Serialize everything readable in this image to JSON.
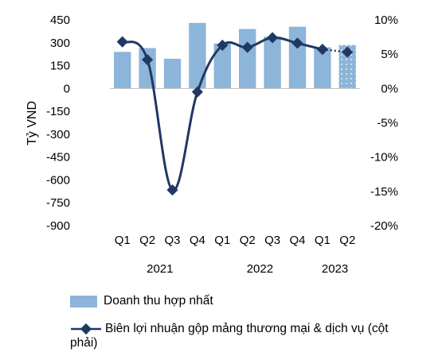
{
  "chart_data": {
    "type": "bar+line",
    "ylabel": "Tỷ VND",
    "categories": [
      "Q1",
      "Q2",
      "Q3",
      "Q4",
      "Q1",
      "Q2",
      "Q3",
      "Q4",
      "Q1",
      "Q2"
    ],
    "years": [
      {
        "label": "2021",
        "start": 0,
        "end": 3
      },
      {
        "label": "2022",
        "start": 4,
        "end": 7
      },
      {
        "label": "2023",
        "start": 8,
        "end": 9
      }
    ],
    "left_axis": {
      "ticks": [
        "450",
        "300",
        "150",
        "0",
        "-150",
        "-300",
        "-450",
        "-600",
        "-750",
        "-900"
      ],
      "ylim": [
        -900,
        450
      ]
    },
    "right_axis": {
      "ticks": [
        "10%",
        "5%",
        "0%",
        "-5%",
        "-10%",
        "-15%",
        "-20%"
      ],
      "ylim": [
        -20,
        10
      ]
    },
    "series": [
      {
        "name": "Doanh thu hợp nhất",
        "type": "bar",
        "axis": "left",
        "values": [
          240,
          265,
          195,
          430,
          295,
          390,
          340,
          405,
          270,
          285
        ],
        "projected_from": 9
      },
      {
        "name": "Biên lợi nhuận gộp mảng thương mại & dịch vụ (cột phải)",
        "type": "line",
        "axis": "right",
        "values": [
          6.8,
          4.2,
          -14.8,
          -0.5,
          6.3,
          6.0,
          7.4,
          6.6,
          5.7,
          5.3
        ],
        "dotted_from": 8
      }
    ],
    "colors": {
      "bar": "#8db4d9",
      "line": "#1f3864"
    },
    "legend": {
      "position": "bottom"
    }
  }
}
